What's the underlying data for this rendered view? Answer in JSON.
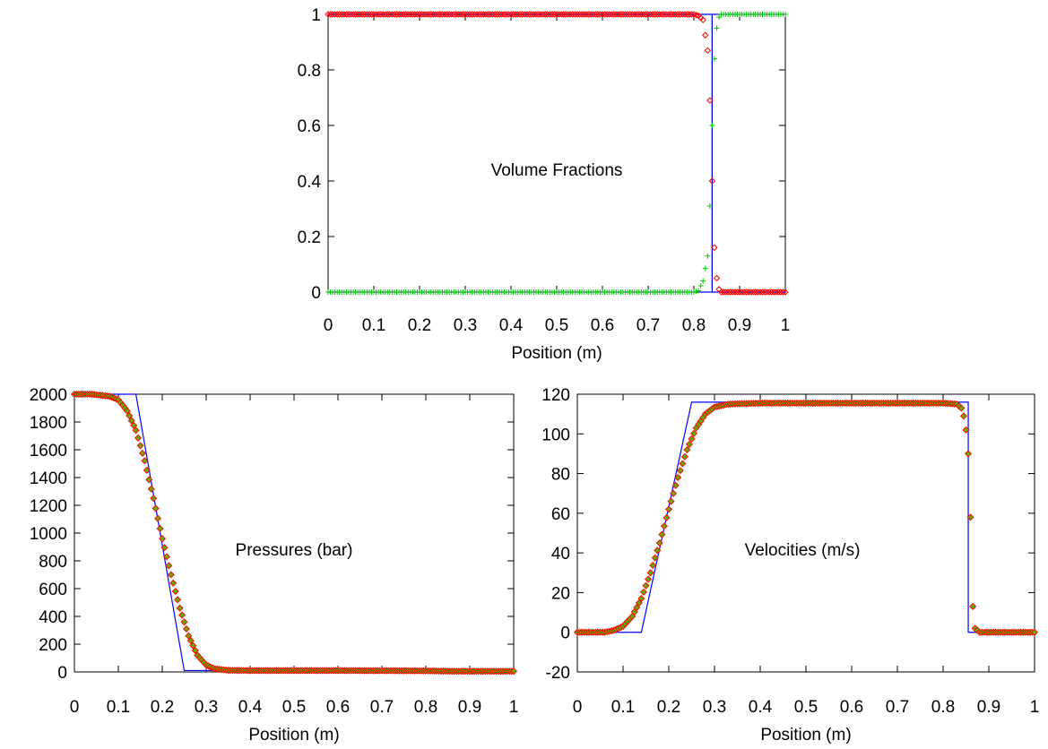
{
  "chart_data": [
    {
      "type": "line",
      "title": "Volume Fractions",
      "xlabel": "Position (m)",
      "ylabel": "",
      "xlim": [
        0,
        1
      ],
      "ylim": [
        0,
        1
      ],
      "x_ticks": [
        "0",
        "0.1",
        "0.2",
        "0.3",
        "0.4",
        "0.5",
        "0.6",
        "0.7",
        "0.8",
        "0.9",
        "1"
      ],
      "y_ticks": [
        "0",
        "0.2",
        "0.4",
        "0.6",
        "0.8",
        "1"
      ],
      "grid": false,
      "legend": "none",
      "colors": {
        "exact": "#0000ff",
        "series1": "#ff0000",
        "series2": "#00cc00"
      },
      "exact_solution": {
        "x": [
          0,
          0.84,
          0.84,
          1
        ],
        "y_phase1": [
          1,
          1,
          0,
          0
        ],
        "y_phase2": [
          0,
          0,
          1,
          1
        ]
      },
      "series": [
        {
          "marker": "diamond",
          "color": "#ff0000",
          "x": [
            0,
            0.8,
            0.81,
            0.82,
            0.83,
            0.835,
            0.84,
            0.845,
            0.85,
            0.855,
            0.86,
            1
          ],
          "y": [
            1,
            1,
            0.995,
            0.98,
            0.87,
            0.69,
            0.4,
            0.16,
            0.05,
            0.01,
            0,
            0
          ]
        },
        {
          "marker": "plus",
          "color": "#00cc00",
          "x": [
            0,
            0.8,
            0.81,
            0.82,
            0.83,
            0.835,
            0.84,
            0.845,
            0.85,
            0.855,
            0.86,
            1
          ],
          "y": [
            0,
            0,
            0.005,
            0.04,
            0.13,
            0.31,
            0.6,
            0.84,
            0.95,
            0.99,
            1,
            1
          ]
        }
      ]
    },
    {
      "type": "line",
      "title": "Pressures (bar)",
      "xlabel": "Position (m)",
      "ylabel": "",
      "xlim": [
        0,
        1
      ],
      "ylim": [
        0,
        2000
      ],
      "x_ticks": [
        "0",
        "0.1",
        "0.2",
        "0.3",
        "0.4",
        "0.5",
        "0.6",
        "0.7",
        "0.8",
        "0.9",
        "1"
      ],
      "y_ticks": [
        "0",
        "200",
        "400",
        "600",
        "800",
        "1000",
        "1200",
        "1400",
        "1600",
        "1800",
        "2000"
      ],
      "grid": false,
      "legend": "none",
      "colors": {
        "exact": "#0000ff",
        "marker_edge": "#ff0000",
        "marker_fill": "#66aa00"
      },
      "exact_solution": {
        "x": [
          0,
          0.14,
          0.25,
          1
        ],
        "y": [
          2000,
          2000,
          10,
          10
        ]
      },
      "series": [
        {
          "marker": "diamond",
          "x": [
            0,
            0.04,
            0.08,
            0.1,
            0.12,
            0.14,
            0.16,
            0.18,
            0.2,
            0.22,
            0.24,
            0.26,
            0.28,
            0.3,
            0.32,
            0.35,
            0.4,
            0.6,
            0.8,
            0.86,
            1
          ],
          "y": [
            2000,
            2000,
            1985,
            1960,
            1880,
            1740,
            1520,
            1250,
            960,
            700,
            460,
            260,
            120,
            50,
            22,
            12,
            10,
            10,
            8,
            5,
            5
          ]
        }
      ]
    },
    {
      "type": "line",
      "title": "Velocities (m/s)",
      "xlabel": "Position (m)",
      "ylabel": "",
      "xlim": [
        0,
        1
      ],
      "ylim": [
        -20,
        120
      ],
      "x_ticks": [
        "0",
        "0.1",
        "0.2",
        "0.3",
        "0.4",
        "0.5",
        "0.6",
        "0.7",
        "0.8",
        "0.9",
        "1"
      ],
      "y_ticks": [
        "-20",
        "0",
        "20",
        "40",
        "60",
        "80",
        "100",
        "120"
      ],
      "grid": false,
      "legend": "none",
      "colors": {
        "exact": "#0000ff",
        "marker_edge": "#ff0000",
        "marker_fill": "#66aa00"
      },
      "exact_solution": {
        "x": [
          0,
          0.14,
          0.25,
          0.855,
          0.855,
          1
        ],
        "y": [
          0,
          0,
          116,
          116,
          0,
          0
        ]
      },
      "series": [
        {
          "marker": "diamond",
          "x": [
            0,
            0.06,
            0.08,
            0.1,
            0.12,
            0.14,
            0.16,
            0.18,
            0.2,
            0.22,
            0.24,
            0.26,
            0.28,
            0.3,
            0.33,
            0.4,
            0.6,
            0.8,
            0.83,
            0.84,
            0.845,
            0.85,
            0.855,
            0.86,
            0.865,
            0.87,
            0.88,
            1
          ],
          "y": [
            0,
            0,
            1,
            3,
            8,
            17,
            30,
            45,
            62,
            78,
            92,
            103,
            110,
            113.5,
            115,
            115.5,
            115.5,
            115.5,
            115,
            113,
            109,
            102,
            90,
            58,
            13,
            2,
            0,
            0
          ]
        }
      ]
    }
  ]
}
